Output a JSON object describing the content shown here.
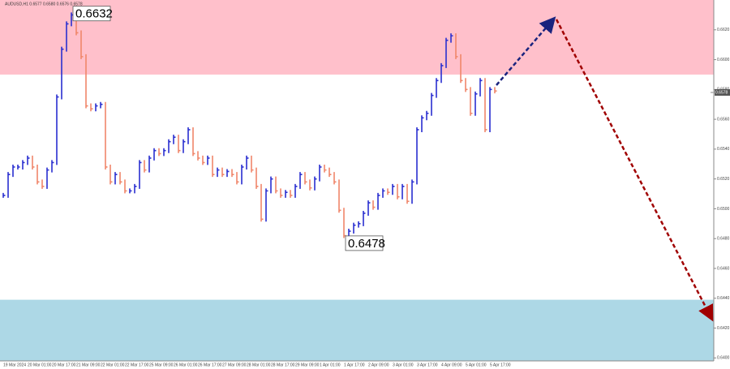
{
  "chart_data": {
    "type": "price-bars",
    "title": "AUDUSD,H1  0.6577 0.6580 0.6576 0.6578",
    "categories": [
      "19 Mar 2024",
      null,
      null,
      null,
      null,
      "20 Mar 01:00",
      null,
      null,
      null,
      null,
      "20 Mar 17:00",
      null,
      null,
      null,
      null,
      "21 Mar 09:00",
      null,
      null,
      null,
      null,
      "22 Mar 01:00",
      null,
      null,
      null,
      null,
      "22 Mar 17:00",
      null,
      null,
      null,
      null,
      "25 Mar 09:00",
      null,
      null,
      null,
      null,
      "26 Mar 01:00",
      null,
      null,
      null,
      null,
      "26 Mar 17:00",
      null,
      null,
      null,
      null,
      "27 Mar 09:00",
      null,
      null,
      null,
      null,
      "28 Mar 01:00",
      null,
      null,
      null,
      null,
      "28 Mar 17:00",
      null,
      null,
      null,
      null,
      "29 Mar 09:00",
      null,
      null,
      null,
      null,
      "1 Apr 01:00",
      null,
      null,
      null,
      null,
      "1 Apr 17:00",
      null,
      null,
      null,
      null,
      "2 Apr 09:00",
      null,
      null,
      null,
      null,
      "3 Apr 01:00",
      null,
      null,
      null,
      null,
      "3 Apr 17:00",
      null,
      null,
      null,
      null,
      "4 Apr 09:00",
      null,
      null,
      null,
      null,
      "5 Apr 01:00",
      null,
      null,
      null,
      null,
      "5 Apr 17:00",
      null
    ],
    "values": [
      0.6509,
      0.6523,
      0.6528,
      0.6528,
      0.6531,
      0.6534,
      0.6528,
      0.6518,
      0.6515,
      0.6526,
      0.6531,
      0.6575,
      0.6607,
      0.6624,
      0.663,
      0.6618,
      0.6602,
      0.6569,
      0.6567,
      0.6569,
      0.657,
      0.6528,
      0.6518,
      0.6523,
      0.6518,
      0.6512,
      0.6512,
      0.6515,
      0.6531,
      0.6526,
      0.6534,
      0.6539,
      0.6537,
      0.6539,
      0.6545,
      0.6548,
      0.6539,
      0.6545,
      0.6553,
      0.6537,
      0.6534,
      0.6531,
      0.6534,
      0.6523,
      0.6526,
      0.6523,
      0.6525,
      0.6523,
      0.6518,
      0.6528,
      0.6534,
      0.6526,
      0.6515,
      0.6493,
      0.6512,
      0.652,
      0.6512,
      0.6509,
      0.6511,
      0.6509,
      0.6515,
      0.6523,
      0.6518,
      0.6514,
      0.652,
      0.6528,
      0.6526,
      0.6523,
      0.6518,
      0.6499,
      0.6482,
      0.6485,
      0.6489,
      0.649,
      0.6497,
      0.6504,
      0.6501,
      0.6509,
      0.6512,
      0.6511,
      0.6515,
      0.6508,
      0.6515,
      0.6505,
      0.6518,
      0.6553,
      0.6561,
      0.6564,
      0.6576,
      0.6586,
      0.6596,
      0.6613,
      0.6616,
      0.6602,
      0.6586,
      0.658,
      0.6564,
      0.6577,
      0.6586,
      0.6553,
      0.658,
      0.6579
    ],
    "up_color": "#2a2fd0",
    "down_color": "#f0866a",
    "ylim": [
      0.6398,
      0.664
    ],
    "yticks": [
      {
        "value": 0.64,
        "label": "0.6400"
      },
      {
        "value": 0.642,
        "label": "0.6420"
      },
      {
        "value": 0.644,
        "label": "0.6440"
      },
      {
        "value": 0.646,
        "label": "0.6460"
      },
      {
        "value": 0.648,
        "label": "0.6480"
      },
      {
        "value": 0.65,
        "label": "0.6500"
      },
      {
        "value": 0.652,
        "label": "0.6520"
      },
      {
        "value": 0.654,
        "label": "0.6540"
      },
      {
        "value": 0.656,
        "label": "0.6560"
      },
      {
        "value": 0.658,
        "label": "0.6580"
      },
      {
        "value": 0.66,
        "label": "0.6600"
      },
      {
        "value": 0.662,
        "label": "0.6620"
      }
    ],
    "zones": [
      {
        "from": 0.659,
        "to": 0.664,
        "color": "#ffc0cb"
      },
      {
        "from": 0.6398,
        "to": 0.6439,
        "color": "#add8e6"
      }
    ],
    "current_price": {
      "value": 0.6578,
      "label": "0.6578"
    },
    "annotations": [
      {
        "value": 0.6632,
        "label": "0.6632"
      },
      {
        "value": 0.6478,
        "label": "0.6478"
      }
    ]
  }
}
